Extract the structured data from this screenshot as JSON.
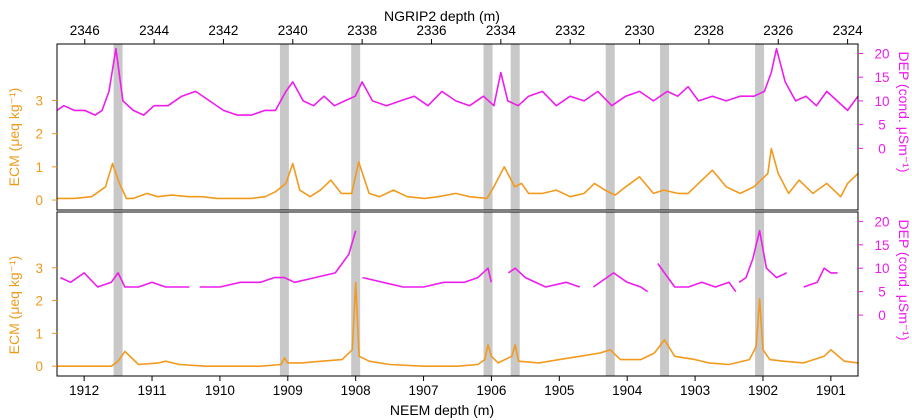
{
  "colors": {
    "ecm": "#f29a1e",
    "dep": "#ee1cee",
    "band": "#c8c8c8",
    "axis": "#000000"
  },
  "chart_data": {
    "type": "line",
    "top_axis": {
      "title": "NGRIP2 depth (m)",
      "range": [
        2346.8,
        2323.7
      ],
      "ticks": [
        2346,
        2344,
        2342,
        2340,
        2338,
        2336,
        2334,
        2332,
        2330,
        2328,
        2326,
        2324
      ]
    },
    "bottom_axis": {
      "title": "NEEM depth (m)",
      "range": [
        1912.4,
        1900.6
      ],
      "ticks": [
        1912,
        1911,
        1910,
        1909,
        1908,
        1907,
        1906,
        1905,
        1904,
        1903,
        1902,
        1901
      ]
    },
    "ecm_axis": {
      "title": "ECM (μeq kg⁻¹)",
      "range": [
        -0.3,
        4.7
      ],
      "ticks": [
        0,
        1,
        2,
        3
      ]
    },
    "dep_axis": {
      "title": "DEP (cond. μSm⁻¹)",
      "range": [
        -13,
        22
      ],
      "ticks": [
        0,
        5,
        10,
        15,
        20
      ]
    },
    "bands_neem": [
      1911.5,
      1909.05,
      1908.0,
      1906.05,
      1905.65,
      1904.25,
      1903.45,
      1902.05
    ],
    "panels": [
      {
        "name": "NGRIP2",
        "series": [
          {
            "name": "ECM",
            "x": [
              2346.8,
              2346.3,
              2345.8,
              2345.4,
              2345.2,
              2345.0,
              2344.8,
              2344.6,
              2344.2,
              2343.9,
              2343.5,
              2343.0,
              2342.6,
              2342.2,
              2341.8,
              2341.2,
              2340.8,
              2340.5,
              2340.2,
              2340.0,
              2339.8,
              2339.5,
              2339.2,
              2338.9,
              2338.6,
              2338.3,
              2338.1,
              2337.8,
              2337.5,
              2337.1,
              2336.7,
              2336.2,
              2335.8,
              2335.3,
              2334.9,
              2334.4,
              2334.2,
              2333.9,
              2333.6,
              2333.4,
              2333.2,
              2332.8,
              2332.4,
              2332.0,
              2331.6,
              2331.3,
              2331.0,
              2330.7,
              2330.4,
              2330.0,
              2329.6,
              2329.3,
              2328.9,
              2328.6,
              2328.3,
              2327.9,
              2327.5,
              2327.1,
              2326.7,
              2326.5,
              2326.3,
              2326.2,
              2326.0,
              2325.7,
              2325.4,
              2325.0,
              2324.6,
              2324.2,
              2324.0,
              2323.7
            ],
            "y": [
              0.05,
              0.05,
              0.1,
              0.4,
              1.1,
              0.5,
              0.05,
              0.05,
              0.2,
              0.1,
              0.15,
              0.1,
              0.1,
              0.05,
              0.05,
              0.05,
              0.1,
              0.25,
              0.5,
              1.1,
              0.3,
              0.1,
              0.3,
              0.6,
              0.2,
              0.2,
              1.15,
              0.2,
              0.1,
              0.3,
              0.1,
              0.05,
              0.1,
              0.2,
              0.1,
              0.05,
              0.4,
              1.0,
              0.4,
              0.5,
              0.2,
              0.2,
              0.3,
              0.1,
              0.2,
              0.5,
              0.3,
              0.15,
              0.4,
              0.7,
              0.2,
              0.3,
              0.2,
              0.2,
              0.5,
              0.9,
              0.4,
              0.2,
              0.4,
              0.6,
              0.8,
              1.55,
              0.8,
              0.2,
              0.6,
              0.2,
              0.5,
              0.1,
              0.5,
              0.8
            ]
          },
          {
            "name": "DEP",
            "x": [
              2346.8,
              2346.6,
              2346.3,
              2346.0,
              2345.7,
              2345.5,
              2345.3,
              2345.1,
              2344.9,
              2344.6,
              2344.3,
              2344.0,
              2343.6,
              2343.2,
              2342.8,
              2342.4,
              2342.0,
              2341.6,
              2341.2,
              2340.8,
              2340.5,
              2340.2,
              2340.0,
              2339.7,
              2339.4,
              2339.1,
              2338.8,
              2338.5,
              2338.2,
              2338.0,
              2337.7,
              2337.3,
              2336.9,
              2336.5,
              2336.1,
              2335.7,
              2335.3,
              2334.9,
              2334.5,
              2334.2,
              2334.0,
              2333.8,
              2333.5,
              2333.2,
              2332.8,
              2332.4,
              2332.0,
              2331.6,
              2331.2,
              2330.8,
              2330.4,
              2330.0,
              2329.6,
              2329.2,
              2328.9,
              2328.6,
              2328.3,
              2327.9,
              2327.5,
              2327.1,
              2326.7,
              2326.4,
              2326.2,
              2326.05,
              2325.8,
              2325.5,
              2325.2,
              2324.9,
              2324.6,
              2324.3,
              2324.0,
              2323.7
            ],
            "y": [
              8,
              9,
              8,
              8,
              7,
              8,
              12,
              21,
              10,
              8,
              7,
              9,
              9,
              11,
              12,
              10,
              8,
              7,
              7,
              8,
              8,
              12,
              14,
              10,
              9,
              11,
              9,
              10,
              11,
              14,
              10,
              9,
              10,
              11,
              9,
              12,
              10,
              9,
              11,
              9,
              16,
              10,
              9,
              11,
              12,
              9,
              11,
              10,
              12,
              9,
              11,
              12,
              10,
              12,
              11,
              13,
              10,
              11,
              10,
              11,
              11,
              12,
              16,
              21,
              14,
              10,
              11,
              9,
              12,
              10,
              8,
              11
            ]
          }
        ]
      },
      {
        "name": "NEEM",
        "series": [
          {
            "name": "ECM",
            "x": [
              1912.4,
              1912.0,
              1911.8,
              1911.6,
              1911.5,
              1911.4,
              1911.2,
              1910.9,
              1910.8,
              1910.6,
              1910.2,
              1909.8,
              1909.4,
              1909.1,
              1909.05,
              1909.0,
              1908.8,
              1908.5,
              1908.2,
              1908.05,
              1908.0,
              1907.95,
              1907.8,
              1907.5,
              1907.0,
              1906.5,
              1906.2,
              1906.1,
              1906.05,
              1906.0,
              1905.9,
              1905.7,
              1905.65,
              1905.6,
              1905.3,
              1905.0,
              1904.7,
              1904.4,
              1904.25,
              1904.1,
              1903.8,
              1903.6,
              1903.45,
              1903.3,
              1903.0,
              1902.8,
              1902.5,
              1902.2,
              1902.1,
              1902.05,
              1902.0,
              1901.9,
              1901.7,
              1901.4,
              1901.1,
              1901.0,
              1900.8,
              1900.6
            ],
            "y": [
              0,
              0,
              0,
              0,
              0.15,
              0.45,
              0.05,
              0.1,
              0.15,
              0.05,
              0,
              0,
              0,
              0.05,
              0.25,
              0.1,
              0.1,
              0.15,
              0.2,
              0.5,
              2.55,
              0.3,
              0.15,
              0.05,
              0,
              0,
              0.05,
              0.2,
              0.65,
              0.3,
              0.1,
              0.3,
              0.65,
              0.15,
              0.1,
              0.2,
              0.3,
              0.4,
              0.5,
              0.2,
              0.2,
              0.4,
              0.8,
              0.3,
              0.2,
              0.1,
              0.05,
              0.2,
              0.6,
              2.05,
              0.5,
              0.2,
              0.15,
              0.1,
              0.3,
              0.5,
              0.15,
              0.1
            ]
          },
          {
            "name": "DEP",
            "x": [
              1912.35,
              1912.2,
              1912.0,
              1911.8,
              1911.6,
              1911.5,
              1911.4,
              1911.2,
              1911.0,
              1910.8,
              1910.6,
              1910.45,
              null,
              1910.3,
              1910.0,
              1909.7,
              1909.4,
              1909.2,
              1909.05,
              1908.9,
              1908.6,
              1908.3,
              1908.1,
              1908.0,
              null,
              1907.9,
              1907.6,
              1907.3,
              1907.0,
              1906.7,
              1906.4,
              1906.2,
              1906.05,
              1906.0,
              null,
              1905.75,
              1905.65,
              1905.5,
              1905.2,
              1904.9,
              1904.7,
              null,
              1904.5,
              1904.3,
              1904.2,
              1904.0,
              1903.8,
              1903.7,
              null,
              1903.55,
              1903.45,
              1903.3,
              1903.1,
              1902.9,
              1902.7,
              1902.5,
              1902.4,
              null,
              1902.35,
              1902.25,
              1902.15,
              1902.05,
              1901.95,
              1901.8,
              1901.65,
              null,
              1901.4,
              1901.2,
              1901.1,
              1901.0,
              1900.9
            ],
            "y": [
              8,
              7,
              9,
              6,
              7,
              9,
              6,
              6,
              7,
              6,
              6,
              6,
              null,
              6,
              6,
              7,
              7,
              8,
              8,
              7,
              8,
              9,
              13,
              18,
              null,
              8,
              7,
              6,
              6,
              7,
              7,
              8,
              10,
              7,
              null,
              9,
              10,
              8,
              6,
              7,
              6,
              null,
              6,
              8,
              9,
              7,
              6,
              5,
              null,
              11,
              9,
              6,
              6,
              7,
              6,
              7,
              5,
              null,
              7,
              8,
              12,
              18,
              10,
              8,
              9,
              null,
              6,
              7,
              10,
              9,
              9
            ]
          }
        ]
      }
    ]
  }
}
